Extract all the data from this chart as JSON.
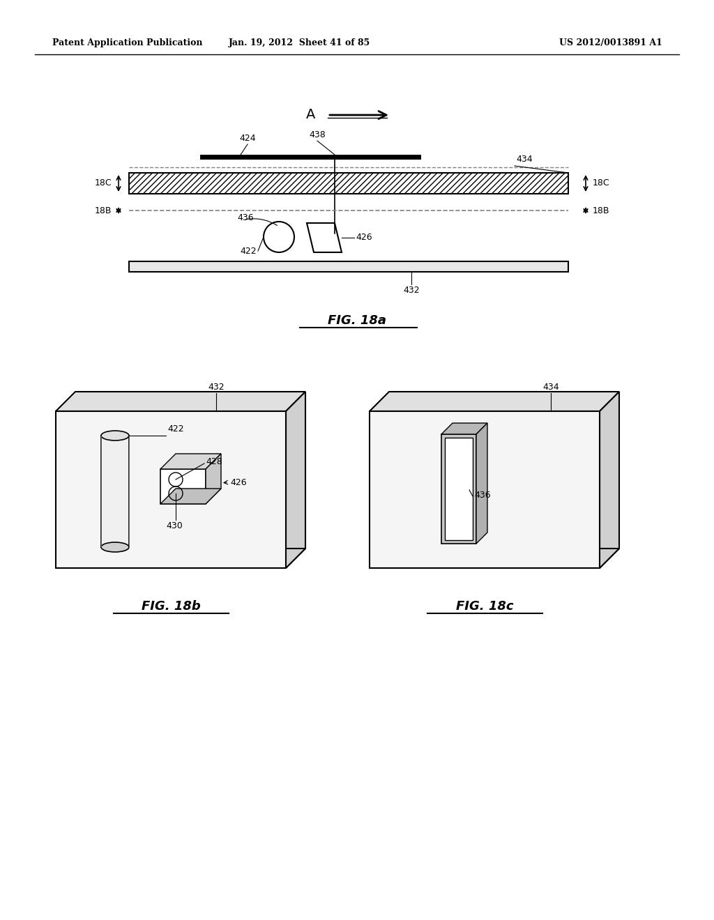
{
  "bg_color": "#ffffff",
  "header_left": "Patent Application Publication",
  "header_mid": "Jan. 19, 2012  Sheet 41 of 85",
  "header_right": "US 2012/0013891 A1"
}
